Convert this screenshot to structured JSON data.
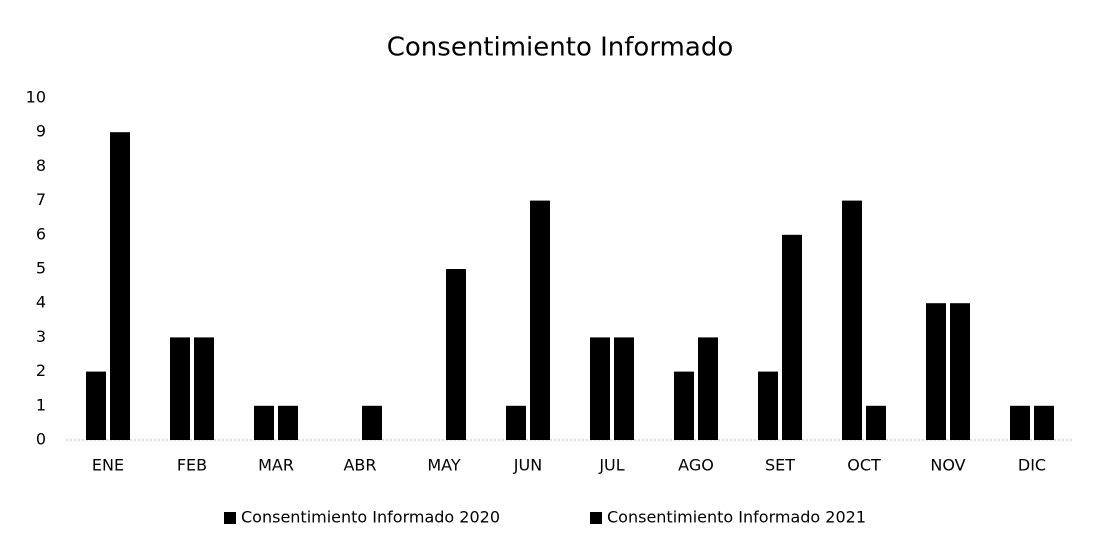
{
  "chart_data": {
    "type": "bar",
    "title": "Consentimiento Informado",
    "categories": [
      "ENE",
      "FEB",
      "MAR",
      "ABR",
      "MAY",
      "JUN",
      "JUL",
      "AGO",
      "SET",
      "OCT",
      "NOV",
      "DIC"
    ],
    "series": [
      {
        "name": "Consentimiento Informado 2020",
        "color": "#000000",
        "values": [
          2,
          3,
          1,
          0,
          0,
          1,
          3,
          2,
          2,
          7,
          4,
          1
        ]
      },
      {
        "name": "Consentimiento Informado 2021",
        "color": "#000000",
        "values": [
          9,
          3,
          1,
          1,
          5,
          7,
          3,
          3,
          6,
          1,
          4,
          1
        ]
      }
    ],
    "ylim": [
      0,
      10
    ],
    "yticks": [
      0,
      1,
      2,
      3,
      4,
      5,
      6,
      7,
      8,
      9,
      10
    ],
    "grid": false,
    "legend": "bottom"
  }
}
